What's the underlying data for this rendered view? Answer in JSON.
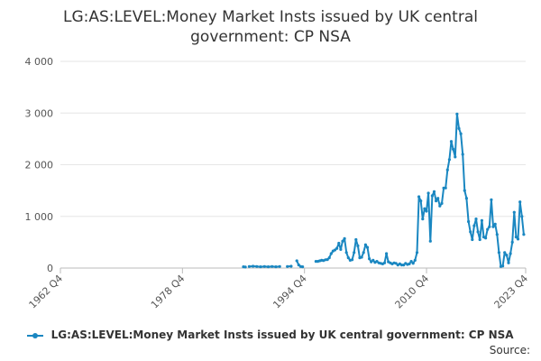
{
  "chart_data": {
    "type": "line",
    "title_lines": [
      "LG:AS:LEVEL:Money Market Insts issued by UK central",
      "government: CP NSA"
    ],
    "x_tick_labels": [
      "1962 Q4",
      "1978 Q4",
      "1994 Q4",
      "2010 Q4",
      "2023 Q4"
    ],
    "x_ticks": [
      1962.75,
      1978.75,
      1994.75,
      2010.75,
      2023.75
    ],
    "xlim": [
      1962.75,
      2023.75
    ],
    "y_ticks": [
      0,
      1000,
      2000,
      3000,
      4000
    ],
    "y_tick_labels": [
      "0",
      "1 000",
      "2 000",
      "3 000",
      "4 000"
    ],
    "ylim": [
      0,
      4000
    ],
    "grid": "horizontal",
    "legend_position": "bottom",
    "series": [
      {
        "name": "LG:AS:LEVEL:Money Market Insts issued by UK central government: CP NSA",
        "color": "#1a87c1",
        "segments": [
          [
            [
              1986.75,
              25
            ],
            [
              1987.0,
              20
            ]
          ],
          [
            [
              1987.5,
              30
            ],
            [
              1988.0,
              35
            ],
            [
              1988.5,
              30
            ],
            [
              1989.0,
              25
            ],
            [
              1989.5,
              30
            ],
            [
              1990.0,
              25
            ],
            [
              1990.5,
              30
            ],
            [
              1991.0,
              25
            ],
            [
              1991.5,
              30
            ]
          ],
          [
            [
              1992.5,
              30
            ],
            [
              1993.0,
              35
            ]
          ],
          [
            [
              1993.75,
              140
            ],
            [
              1994.0,
              60
            ],
            [
              1994.25,
              30
            ],
            [
              1994.5,
              25
            ]
          ],
          [
            [
              1996.25,
              130
            ],
            [
              1996.5,
              130
            ],
            [
              1996.75,
              140
            ],
            [
              1997.0,
              150
            ],
            [
              1997.25,
              145
            ],
            [
              1997.5,
              160
            ],
            [
              1997.75,
              165
            ],
            [
              1998.0,
              200
            ],
            [
              1998.25,
              280
            ],
            [
              1998.5,
              330
            ],
            [
              1998.75,
              350
            ],
            [
              1999.0,
              380
            ],
            [
              1999.25,
              480
            ],
            [
              1999.5,
              360
            ],
            [
              1999.75,
              520
            ],
            [
              2000.0,
              570
            ],
            [
              2000.25,
              300
            ],
            [
              2000.5,
              200
            ],
            [
              2000.75,
              150
            ],
            [
              2001.0,
              160
            ],
            [
              2001.25,
              300
            ],
            [
              2001.5,
              550
            ],
            [
              2001.75,
              430
            ],
            [
              2002.0,
              200
            ],
            [
              2002.25,
              210
            ],
            [
              2002.5,
              300
            ],
            [
              2002.75,
              450
            ],
            [
              2003.0,
              400
            ],
            [
              2003.25,
              180
            ],
            [
              2003.5,
              120
            ],
            [
              2003.75,
              150
            ],
            [
              2004.0,
              110
            ],
            [
              2004.25,
              130
            ],
            [
              2004.5,
              100
            ],
            [
              2004.75,
              90
            ],
            [
              2005.0,
              80
            ],
            [
              2005.25,
              100
            ],
            [
              2005.5,
              280
            ],
            [
              2005.75,
              120
            ],
            [
              2006.0,
              100
            ],
            [
              2006.25,
              80
            ],
            [
              2006.5,
              100
            ],
            [
              2006.75,
              90
            ],
            [
              2007.0,
              60
            ],
            [
              2007.25,
              80
            ],
            [
              2007.5,
              60
            ],
            [
              2007.75,
              60
            ],
            [
              2008.0,
              90
            ],
            [
              2008.25,
              70
            ],
            [
              2008.5,
              80
            ],
            [
              2008.75,
              130
            ],
            [
              2009.0,
              90
            ],
            [
              2009.25,
              150
            ],
            [
              2009.5,
              300
            ],
            [
              2009.75,
              1380
            ],
            [
              2010.0,
              1300
            ],
            [
              2010.25,
              950
            ],
            [
              2010.5,
              1150
            ],
            [
              2010.75,
              1100
            ],
            [
              2011.0,
              1450
            ],
            [
              2011.25,
              520
            ],
            [
              2011.5,
              1400
            ],
            [
              2011.75,
              1480
            ],
            [
              2012.0,
              1300
            ],
            [
              2012.25,
              1350
            ],
            [
              2012.5,
              1200
            ],
            [
              2012.75,
              1250
            ],
            [
              2013.0,
              1550
            ],
            [
              2013.25,
              1550
            ],
            [
              2013.5,
              1900
            ],
            [
              2013.75,
              2100
            ],
            [
              2014.0,
              2450
            ],
            [
              2014.25,
              2300
            ],
            [
              2014.5,
              2150
            ],
            [
              2014.75,
              2980
            ],
            [
              2015.0,
              2700
            ],
            [
              2015.25,
              2600
            ],
            [
              2015.5,
              2200
            ],
            [
              2015.75,
              1500
            ],
            [
              2016.0,
              1350
            ],
            [
              2016.25,
              900
            ],
            [
              2016.5,
              700
            ],
            [
              2016.75,
              550
            ],
            [
              2017.0,
              820
            ],
            [
              2017.25,
              950
            ],
            [
              2017.5,
              700
            ],
            [
              2017.75,
              550
            ],
            [
              2018.0,
              920
            ],
            [
              2018.25,
              600
            ],
            [
              2018.5,
              580
            ],
            [
              2018.75,
              750
            ],
            [
              2019.0,
              800
            ],
            [
              2019.25,
              1320
            ],
            [
              2019.5,
              800
            ],
            [
              2019.75,
              850
            ],
            [
              2020.0,
              650
            ],
            [
              2020.25,
              300
            ],
            [
              2020.5,
              30
            ],
            [
              2020.75,
              40
            ],
            [
              2021.0,
              300
            ],
            [
              2021.25,
              250
            ],
            [
              2021.5,
              100
            ],
            [
              2021.75,
              280
            ],
            [
              2022.0,
              500
            ],
            [
              2022.25,
              1080
            ],
            [
              2022.5,
              600
            ],
            [
              2022.75,
              560
            ],
            [
              2023.0,
              1280
            ],
            [
              2023.25,
              1000
            ],
            [
              2023.5,
              650
            ]
          ]
        ]
      }
    ]
  },
  "legend": {
    "label": "LG:AS:LEVEL:Money Market Insts issued by UK central government: CP NSA"
  },
  "source": {
    "label": "Source:"
  }
}
